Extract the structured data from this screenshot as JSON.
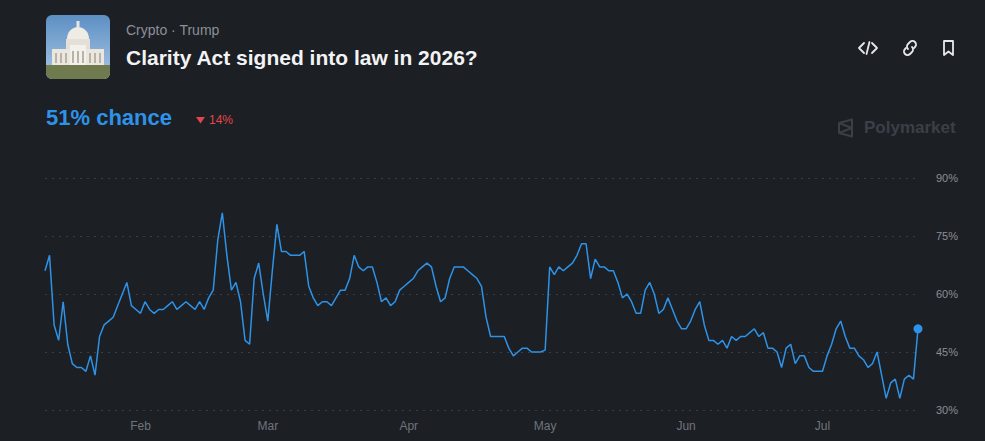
{
  "header": {
    "tags": "Crypto · Trump",
    "title": "Clarity Act signed into law in 2026?",
    "headline": "51% chance",
    "change": {
      "value": -14,
      "label": "14%"
    },
    "watermark": "Polymarket"
  },
  "chart_data": {
    "type": "line",
    "categories": [
      null,
      null,
      null,
      null,
      null,
      null,
      null,
      null,
      null,
      null,
      null,
      null,
      null,
      null,
      null,
      null,
      null,
      null,
      null,
      null,
      null,
      "Feb",
      null,
      null,
      null,
      null,
      null,
      null,
      null,
      null,
      null,
      null,
      null,
      null,
      null,
      null,
      null,
      null,
      null,
      null,
      null,
      null,
      null,
      null,
      null,
      null,
      null,
      null,
      null,
      "Mar",
      null,
      null,
      null,
      null,
      null,
      null,
      null,
      null,
      null,
      null,
      null,
      null,
      null,
      null,
      null,
      null,
      null,
      null,
      null,
      null,
      null,
      null,
      null,
      null,
      null,
      null,
      null,
      null,
      null,
      null,
      "Apr",
      null,
      null,
      null,
      null,
      null,
      null,
      null,
      null,
      null,
      null,
      null,
      null,
      null,
      null,
      null,
      null,
      null,
      null,
      null,
      null,
      null,
      null,
      null,
      null,
      null,
      null,
      null,
      null,
      null,
      "May",
      null,
      null,
      null,
      null,
      null,
      null,
      null,
      null,
      null,
      null,
      null,
      null,
      null,
      null,
      null,
      null,
      null,
      null,
      null,
      null,
      null,
      null,
      null,
      null,
      null,
      null,
      null,
      null,
      null,
      null,
      "Jun",
      null,
      null,
      null,
      null,
      null,
      null,
      null,
      null,
      null,
      null,
      null,
      null,
      null,
      null,
      null,
      null,
      null,
      null,
      null,
      null,
      null,
      null,
      null,
      null,
      null,
      null,
      null,
      null,
      null,
      "Jul",
      null,
      null,
      null,
      null,
      null,
      null,
      null,
      null,
      null,
      null,
      null,
      null,
      null,
      null,
      null,
      null,
      null,
      null,
      null,
      null,
      null
    ],
    "values": [
      66,
      70,
      52,
      48,
      58,
      47,
      42,
      41,
      41,
      40,
      44,
      39,
      49,
      52,
      53,
      54,
      57,
      60,
      63,
      57,
      56,
      55,
      58,
      56,
      55,
      56,
      56,
      57,
      58,
      56,
      57,
      58,
      57,
      56,
      58,
      56,
      59,
      61,
      74,
      81,
      70,
      61,
      63,
      58,
      48,
      47,
      64,
      68,
      60,
      53,
      66,
      78,
      71,
      71,
      70,
      70,
      70,
      71,
      62,
      59,
      57,
      58,
      58,
      57,
      59,
      61,
      61,
      64,
      70,
      67,
      66,
      67,
      67,
      63,
      58,
      59,
      57,
      58,
      61,
      62,
      63,
      64,
      66,
      67,
      68,
      67,
      62,
      58,
      59,
      64,
      67,
      67,
      67,
      66,
      65,
      64,
      62,
      54,
      49,
      49,
      49,
      49,
      46,
      44,
      45,
      46,
      46,
      45,
      45,
      45,
      45.5,
      67,
      65,
      67,
      66,
      67,
      68,
      70,
      73,
      73,
      64,
      69,
      67,
      67,
      66,
      66,
      63,
      59,
      60,
      58,
      55,
      55,
      61,
      63,
      60,
      55,
      56,
      59,
      56,
      53,
      51,
      51,
      53,
      56,
      58,
      52,
      48,
      48,
      47,
      48,
      46,
      49,
      48,
      49,
      49,
      50,
      51,
      49,
      50,
      46,
      46,
      45,
      41,
      46,
      47,
      42,
      44,
      44,
      41,
      40,
      40,
      40,
      44,
      47,
      51,
      53,
      49,
      46,
      46,
      44,
      43,
      41,
      42,
      45,
      39,
      33,
      37,
      38,
      33,
      38,
      39,
      38,
      51
    ],
    "color": "#2e93e8",
    "ylim": [
      30,
      90
    ],
    "yticks": [
      {
        "value": 30,
        "label": "30%"
      },
      {
        "value": 45,
        "label": "45%"
      },
      {
        "value": 60,
        "label": "60%"
      },
      {
        "value": 75,
        "label": "75%"
      },
      {
        "value": 90,
        "label": "90%"
      }
    ],
    "grid": true,
    "marker": "last"
  }
}
